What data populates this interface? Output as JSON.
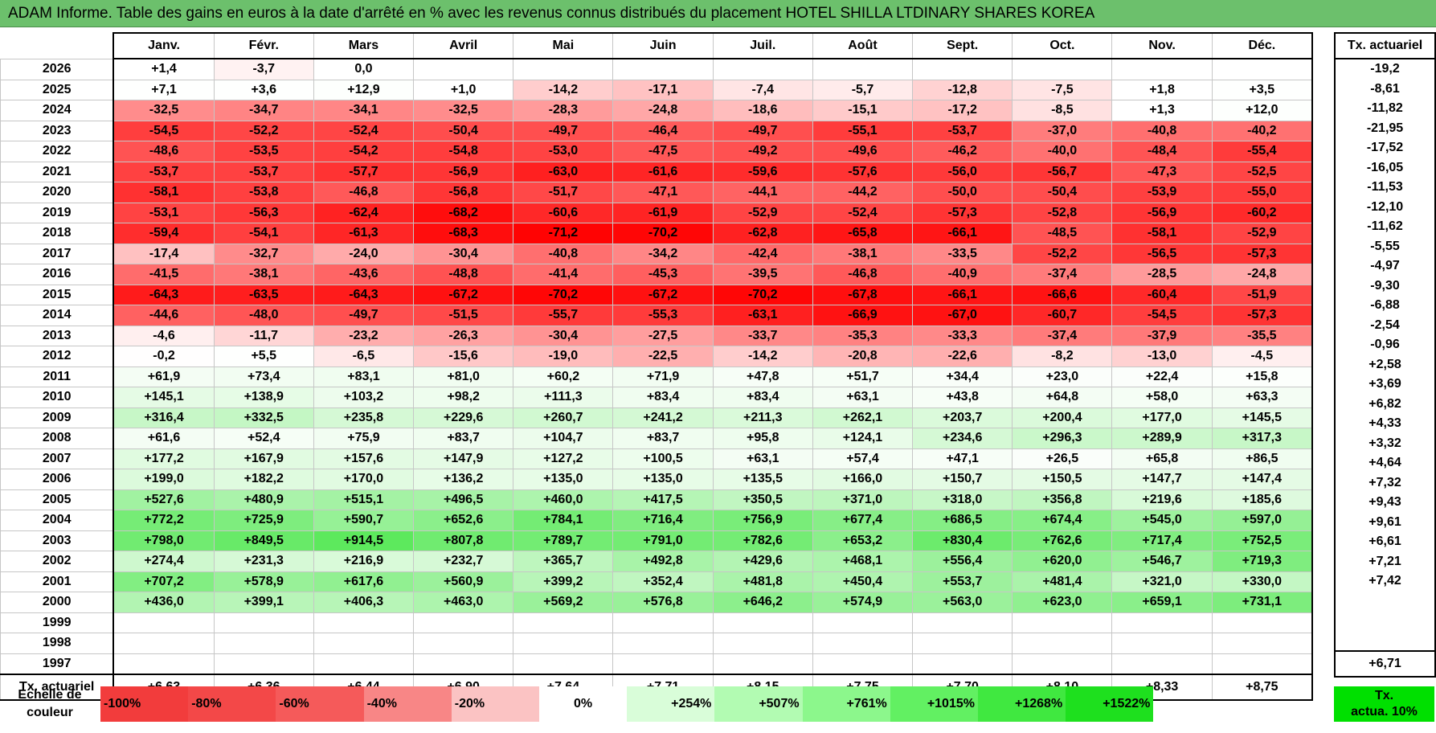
{
  "title": "ADAM Informe. Table des gains en euros à la date d'arrêté en % avec les revenus connus distribués du placement HOTEL SHILLA LTDINARY SHARES KOREA",
  "chart_data": {
    "type": "table",
    "months": [
      "Janv.",
      "Févr.",
      "Mars",
      "Avril",
      "Mai",
      "Juin",
      "Juil.",
      "Août",
      "Sept.",
      "Oct.",
      "Nov.",
      "Déc."
    ],
    "rate_header": "Tx. actuariel",
    "rows": [
      {
        "year": "2026",
        "values": [
          "+1,4",
          "-3,7",
          "0,0",
          "",
          "",
          "",
          "",
          "",
          "",
          "",
          "",
          ""
        ],
        "rate": "-19,2"
      },
      {
        "year": "2025",
        "values": [
          "+7,1",
          "+3,6",
          "+12,9",
          "+1,0",
          "-14,2",
          "-17,1",
          "-7,4",
          "-5,7",
          "-12,8",
          "-7,5",
          "+1,8",
          "+3,5"
        ],
        "rate": "-8,61"
      },
      {
        "year": "2024",
        "values": [
          "-32,5",
          "-34,7",
          "-34,1",
          "-32,5",
          "-28,3",
          "-24,8",
          "-18,6",
          "-15,1",
          "-17,2",
          "-8,5",
          "+1,3",
          "+12,0"
        ],
        "rate": "-11,82"
      },
      {
        "year": "2023",
        "values": [
          "-54,5",
          "-52,2",
          "-52,4",
          "-50,4",
          "-49,7",
          "-46,4",
          "-49,7",
          "-55,1",
          "-53,7",
          "-37,0",
          "-40,8",
          "-40,2"
        ],
        "rate": "-21,95"
      },
      {
        "year": "2022",
        "values": [
          "-48,6",
          "-53,5",
          "-54,2",
          "-54,8",
          "-53,0",
          "-47,5",
          "-49,2",
          "-49,6",
          "-46,2",
          "-40,0",
          "-48,4",
          "-55,4"
        ],
        "rate": "-17,52"
      },
      {
        "year": "2021",
        "values": [
          "-53,7",
          "-53,7",
          "-57,7",
          "-56,9",
          "-63,0",
          "-61,6",
          "-59,6",
          "-57,6",
          "-56,0",
          "-56,7",
          "-47,3",
          "-52,5"
        ],
        "rate": "-16,05"
      },
      {
        "year": "2020",
        "values": [
          "-58,1",
          "-53,8",
          "-46,8",
          "-56,8",
          "-51,7",
          "-47,1",
          "-44,1",
          "-44,2",
          "-50,0",
          "-50,4",
          "-53,9",
          "-55,0"
        ],
        "rate": "-11,53"
      },
      {
        "year": "2019",
        "values": [
          "-53,1",
          "-56,3",
          "-62,4",
          "-68,2",
          "-60,6",
          "-61,9",
          "-52,9",
          "-52,4",
          "-57,3",
          "-52,8",
          "-56,9",
          "-60,2"
        ],
        "rate": "-12,10"
      },
      {
        "year": "2018",
        "values": [
          "-59,4",
          "-54,1",
          "-61,3",
          "-68,3",
          "-71,2",
          "-70,2",
          "-62,8",
          "-65,8",
          "-66,1",
          "-48,5",
          "-58,1",
          "-52,9"
        ],
        "rate": "-11,62"
      },
      {
        "year": "2017",
        "values": [
          "-17,4",
          "-32,7",
          "-24,0",
          "-30,4",
          "-40,8",
          "-34,2",
          "-42,4",
          "-38,1",
          "-33,5",
          "-52,2",
          "-56,5",
          "-57,3"
        ],
        "rate": "-5,55"
      },
      {
        "year": "2016",
        "values": [
          "-41,5",
          "-38,1",
          "-43,6",
          "-48,8",
          "-41,4",
          "-45,3",
          "-39,5",
          "-46,8",
          "-40,9",
          "-37,4",
          "-28,5",
          "-24,8"
        ],
        "rate": "-4,97"
      },
      {
        "year": "2015",
        "values": [
          "-64,3",
          "-63,5",
          "-64,3",
          "-67,2",
          "-70,2",
          "-67,2",
          "-70,2",
          "-67,8",
          "-66,1",
          "-66,6",
          "-60,4",
          "-51,9"
        ],
        "rate": "-9,30"
      },
      {
        "year": "2014",
        "values": [
          "-44,6",
          "-48,0",
          "-49,7",
          "-51,5",
          "-55,7",
          "-55,3",
          "-63,1",
          "-66,9",
          "-67,0",
          "-60,7",
          "-54,5",
          "-57,3"
        ],
        "rate": "-6,88"
      },
      {
        "year": "2013",
        "values": [
          "-4,6",
          "-11,7",
          "-23,2",
          "-26,3",
          "-30,4",
          "-27,5",
          "-33,7",
          "-35,3",
          "-33,3",
          "-37,4",
          "-37,9",
          "-35,5"
        ],
        "rate": "-2,54"
      },
      {
        "year": "2012",
        "values": [
          "-0,2",
          "+5,5",
          "-6,5",
          "-15,6",
          "-19,0",
          "-22,5",
          "-14,2",
          "-20,8",
          "-22,6",
          "-8,2",
          "-13,0",
          "-4,5"
        ],
        "rate": "-0,96"
      },
      {
        "year": "2011",
        "values": [
          "+61,9",
          "+73,4",
          "+83,1",
          "+81,0",
          "+60,2",
          "+71,9",
          "+47,8",
          "+51,7",
          "+34,4",
          "+23,0",
          "+22,4",
          "+15,8"
        ],
        "rate": "+2,58"
      },
      {
        "year": "2010",
        "values": [
          "+145,1",
          "+138,9",
          "+103,2",
          "+98,2",
          "+111,3",
          "+83,4",
          "+83,4",
          "+63,1",
          "+43,8",
          "+64,8",
          "+58,0",
          "+63,3"
        ],
        "rate": "+3,69"
      },
      {
        "year": "2009",
        "values": [
          "+316,4",
          "+332,5",
          "+235,8",
          "+229,6",
          "+260,7",
          "+241,2",
          "+211,3",
          "+262,1",
          "+203,7",
          "+200,4",
          "+177,0",
          "+145,5"
        ],
        "rate": "+6,82"
      },
      {
        "year": "2008",
        "values": [
          "+61,6",
          "+52,4",
          "+75,9",
          "+83,7",
          "+104,7",
          "+83,7",
          "+95,8",
          "+124,1",
          "+234,6",
          "+296,3",
          "+289,9",
          "+317,3"
        ],
        "rate": "+4,33"
      },
      {
        "year": "2007",
        "values": [
          "+177,2",
          "+167,9",
          "+157,6",
          "+147,9",
          "+127,2",
          "+100,5",
          "+63,1",
          "+57,4",
          "+47,1",
          "+26,5",
          "+65,8",
          "+86,5"
        ],
        "rate": "+3,32"
      },
      {
        "year": "2006",
        "values": [
          "+199,0",
          "+182,2",
          "+170,0",
          "+136,2",
          "+135,0",
          "+135,0",
          "+135,5",
          "+166,0",
          "+150,7",
          "+150,5",
          "+147,7",
          "+147,4"
        ],
        "rate": "+4,64"
      },
      {
        "year": "2005",
        "values": [
          "+527,6",
          "+480,9",
          "+515,1",
          "+496,5",
          "+460,0",
          "+417,5",
          "+350,5",
          "+371,0",
          "+318,0",
          "+356,8",
          "+219,6",
          "+185,6"
        ],
        "rate": "+7,32"
      },
      {
        "year": "2004",
        "values": [
          "+772,2",
          "+725,9",
          "+590,7",
          "+652,6",
          "+784,1",
          "+716,4",
          "+756,9",
          "+677,4",
          "+686,5",
          "+674,4",
          "+545,0",
          "+597,0"
        ],
        "rate": "+9,43"
      },
      {
        "year": "2003",
        "values": [
          "+798,0",
          "+849,5",
          "+914,5",
          "+807,8",
          "+789,7",
          "+791,0",
          "+782,6",
          "+653,2",
          "+830,4",
          "+762,6",
          "+717,4",
          "+752,5"
        ],
        "rate": "+9,61"
      },
      {
        "year": "2002",
        "values": [
          "+274,4",
          "+231,3",
          "+216,9",
          "+232,7",
          "+365,7",
          "+492,8",
          "+429,6",
          "+468,1",
          "+556,4",
          "+620,0",
          "+546,7",
          "+719,3"
        ],
        "rate": "+6,61"
      },
      {
        "year": "2001",
        "values": [
          "+707,2",
          "+578,9",
          "+617,6",
          "+560,9",
          "+399,2",
          "+352,4",
          "+481,8",
          "+450,4",
          "+553,7",
          "+481,4",
          "+321,0",
          "+330,0"
        ],
        "rate": "+7,21"
      },
      {
        "year": "2000",
        "values": [
          "+436,0",
          "+399,1",
          "+406,3",
          "+463,0",
          "+569,2",
          "+576,8",
          "+646,2",
          "+574,9",
          "+563,0",
          "+623,0",
          "+659,1",
          "+731,1"
        ],
        "rate": "+7,42"
      },
      {
        "year": "1999",
        "values": [
          "",
          "",
          "",
          "",
          "",
          "",
          "",
          "",
          "",
          "",
          "",
          ""
        ],
        "rate": ""
      },
      {
        "year": "1998",
        "values": [
          "",
          "",
          "",
          "",
          "",
          "",
          "",
          "",
          "",
          "",
          "",
          ""
        ],
        "rate": ""
      },
      {
        "year": "1997",
        "values": [
          "",
          "",
          "",
          "",
          "",
          "",
          "",
          "",
          "",
          "",
          "",
          ""
        ],
        "rate": ""
      }
    ],
    "footer": {
      "label": "Tx. actuariel",
      "values": [
        "+6,63",
        "+6,36",
        "+6,44",
        "+6,90",
        "+7,64",
        "+7,71",
        "+8,15",
        "+7,75",
        "+7,70",
        "+8,10",
        "+8,33",
        "+8,75"
      ],
      "rate": "+6,71"
    },
    "scale": {
      "label_line1": "Echelle de",
      "label_line2": "couleur",
      "steps": [
        {
          "label": "-100%",
          "color": "#f23c3c",
          "align": "l"
        },
        {
          "label": "-80%",
          "color": "#f34848",
          "align": "l"
        },
        {
          "label": "-60%",
          "color": "#f55a5a",
          "align": "l"
        },
        {
          "label": "-40%",
          "color": "#f88686",
          "align": "l"
        },
        {
          "label": "-20%",
          "color": "#fbc3c3",
          "align": "l"
        },
        {
          "label": "0%",
          "color": "#ffffff",
          "align": "c"
        },
        {
          "label": "+254%",
          "color": "#d9fdd9",
          "align": "r"
        },
        {
          "label": "+507%",
          "color": "#b2fbb2",
          "align": "r"
        },
        {
          "label": "+761%",
          "color": "#8cf78c",
          "align": "r"
        },
        {
          "label": "+1015%",
          "color": "#62f062",
          "align": "r"
        },
        {
          "label": "+1268%",
          "color": "#40e840",
          "align": "r"
        },
        {
          "label": "+1522%",
          "color": "#1ee01e",
          "align": "r"
        }
      ],
      "rate_line1": "Tx.",
      "rate_line2": "actua. 10%",
      "rate_color": "#00e000"
    }
  }
}
